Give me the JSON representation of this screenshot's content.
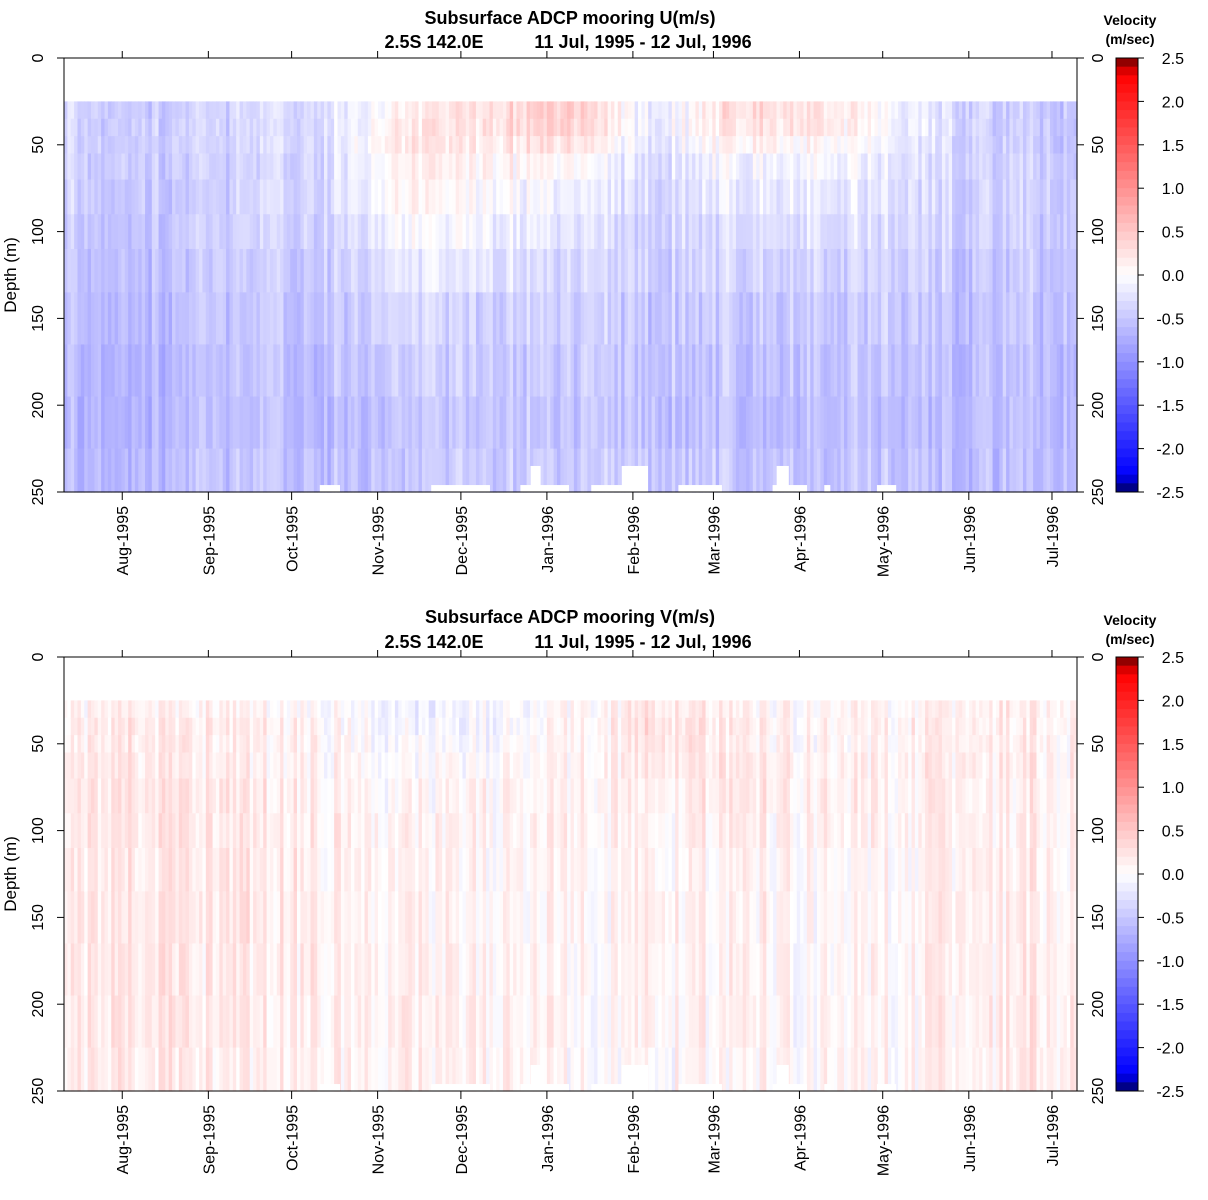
{
  "chart_data": [
    {
      "type": "heatmap",
      "title": "Subsurface ADCP mooring U(m/s)",
      "subtitle_location": "2.5S 142.0E",
      "subtitle_dates": "11 Jul, 1995 - 12 Jul, 1996",
      "ylabel": "Depth (m)",
      "yticks": [
        "0",
        "50",
        "100",
        "150",
        "200",
        "250"
      ],
      "ylim": [
        250,
        0
      ],
      "xticks": [
        "Aug-1995",
        "Sep-1995",
        "Oct-1995",
        "Nov-1995",
        "Dec-1995",
        "Jan-1996",
        "Feb-1996",
        "Mar-1996",
        "Apr-1996",
        "May-1996",
        "Jun-1996",
        "Jul-1996"
      ],
      "xrange": [
        "1995-07-11",
        "1996-07-12"
      ],
      "data_top_depth": 25,
      "colorbar_title": [
        "Velocity",
        "(m/sec)"
      ],
      "colorbar_ticks": [
        "2.5",
        "2.0",
        "1.5",
        "1.0",
        "0.5",
        "0.0",
        "-0.5",
        "-1.0",
        "-1.5",
        "-2.0",
        "-2.5"
      ],
      "clim": [
        -2.5,
        2.5
      ],
      "summary": {
        "depth_levels": [
          30,
          40,
          50,
          60,
          80,
          100,
          120,
          150,
          180,
          210,
          240
        ],
        "months": [
          "Jul-1995",
          "Aug-1995",
          "Sep-1995",
          "Oct-1995",
          "Nov-1995",
          "Dec-1995",
          "Jan-1996",
          "Feb-1996",
          "Mar-1996",
          "Apr-1996",
          "May-1996",
          "Jun-1996",
          "Jul-1996"
        ],
        "values": [
          [
            -0.35,
            -0.45,
            -0.4,
            -0.3,
            0.1,
            0.25,
            0.5,
            -0.2,
            0.35,
            0.3,
            -0.15,
            -0.45,
            -0.5
          ],
          [
            -0.35,
            -0.45,
            -0.4,
            -0.3,
            0.15,
            0.25,
            0.45,
            -0.2,
            0.3,
            0.25,
            -0.15,
            -0.45,
            -0.5
          ],
          [
            -0.35,
            -0.45,
            -0.4,
            -0.3,
            0.2,
            0.2,
            0.3,
            -0.25,
            0.15,
            0.1,
            -0.2,
            -0.45,
            -0.5
          ],
          [
            -0.4,
            -0.45,
            -0.45,
            -0.35,
            0.15,
            0.1,
            0.05,
            -0.3,
            -0.05,
            -0.05,
            -0.25,
            -0.45,
            -0.45
          ],
          [
            -0.4,
            -0.5,
            -0.45,
            -0.35,
            0.05,
            0.0,
            -0.1,
            -0.35,
            -0.15,
            -0.15,
            -0.3,
            -0.45,
            -0.45
          ],
          [
            -0.45,
            -0.5,
            -0.45,
            -0.4,
            -0.05,
            -0.1,
            -0.2,
            -0.4,
            -0.25,
            -0.25,
            -0.35,
            -0.45,
            -0.45
          ],
          [
            -0.5,
            -0.55,
            -0.5,
            -0.45,
            -0.2,
            -0.25,
            -0.3,
            -0.45,
            -0.35,
            -0.35,
            -0.4,
            -0.5,
            -0.5
          ],
          [
            -0.55,
            -0.6,
            -0.55,
            -0.5,
            -0.35,
            -0.4,
            -0.4,
            -0.5,
            -0.45,
            -0.45,
            -0.5,
            -0.55,
            -0.55
          ],
          [
            -0.6,
            -0.65,
            -0.6,
            -0.55,
            -0.45,
            -0.45,
            -0.45,
            -0.55,
            -0.5,
            -0.5,
            -0.55,
            -0.6,
            -0.6
          ],
          [
            -0.65,
            -0.65,
            -0.6,
            -0.6,
            -0.5,
            -0.5,
            -0.5,
            -0.55,
            -0.55,
            -0.55,
            -0.6,
            -0.6,
            -0.6
          ],
          [
            -0.6,
            -0.6,
            -0.55,
            -0.55,
            -0.5,
            -0.45,
            -0.45,
            -0.5,
            -0.5,
            -0.5,
            -0.55,
            -0.6,
            -0.6
          ]
        ]
      }
    },
    {
      "type": "heatmap",
      "title": "Subsurface ADCP mooring V(m/s)",
      "subtitle_location": "2.5S 142.0E",
      "subtitle_dates": "11 Jul, 1995 - 12 Jul, 1996",
      "ylabel": "Depth (m)",
      "yticks": [
        "0",
        "50",
        "100",
        "150",
        "200",
        "250"
      ],
      "ylim": [
        250,
        0
      ],
      "xticks": [
        "Aug-1995",
        "Sep-1995",
        "Oct-1995",
        "Nov-1995",
        "Dec-1995",
        "Jan-1996",
        "Feb-1996",
        "Mar-1996",
        "Apr-1996",
        "May-1996",
        "Jun-1996",
        "Jul-1996"
      ],
      "xrange": [
        "1995-07-11",
        "1996-07-12"
      ],
      "data_top_depth": 25,
      "colorbar_title": [
        "Velocity",
        "(m/sec)"
      ],
      "colorbar_ticks": [
        "2.5",
        "2.0",
        "1.5",
        "1.0",
        "0.5",
        "0.0",
        "-0.5",
        "-1.0",
        "-1.5",
        "-2.0",
        "-2.5"
      ],
      "clim": [
        -2.5,
        2.5
      ],
      "summary": {
        "depth_levels": [
          30,
          40,
          50,
          60,
          80,
          100,
          120,
          150,
          180,
          210,
          240
        ],
        "months": [
          "Jul-1995",
          "Aug-1995",
          "Sep-1995",
          "Oct-1995",
          "Nov-1995",
          "Dec-1995",
          "Jan-1996",
          "Feb-1996",
          "Mar-1996",
          "Apr-1996",
          "May-1996",
          "Jun-1996",
          "Jul-1996"
        ],
        "values": [
          [
            0.1,
            0.15,
            0.1,
            0.05,
            -0.15,
            -0.1,
            0.05,
            0.2,
            0.1,
            0.05,
            0.1,
            0.15,
            0.15
          ],
          [
            0.15,
            0.2,
            0.15,
            0.1,
            -0.1,
            -0.1,
            0.05,
            0.3,
            0.15,
            0.05,
            0.15,
            0.15,
            0.15
          ],
          [
            0.15,
            0.2,
            0.15,
            0.1,
            -0.05,
            -0.05,
            0.05,
            0.25,
            0.15,
            0.05,
            0.15,
            0.15,
            0.15
          ],
          [
            0.2,
            0.2,
            0.15,
            0.1,
            0.0,
            0.0,
            0.1,
            0.2,
            0.2,
            0.1,
            0.15,
            0.15,
            0.15
          ],
          [
            0.2,
            0.25,
            0.2,
            0.15,
            0.05,
            0.05,
            0.1,
            0.15,
            0.2,
            0.1,
            0.15,
            0.15,
            0.15
          ],
          [
            0.2,
            0.25,
            0.2,
            0.15,
            0.1,
            0.05,
            0.1,
            0.1,
            0.15,
            0.1,
            0.15,
            0.15,
            0.15
          ],
          [
            0.2,
            0.2,
            0.2,
            0.15,
            0.1,
            0.05,
            0.1,
            0.1,
            0.1,
            0.05,
            0.1,
            0.15,
            0.15
          ],
          [
            0.2,
            0.2,
            0.2,
            0.15,
            0.1,
            0.05,
            0.05,
            0.1,
            0.1,
            0.05,
            0.1,
            0.15,
            0.15
          ],
          [
            0.2,
            0.2,
            0.2,
            0.15,
            0.1,
            0.1,
            0.05,
            0.1,
            0.1,
            0.05,
            0.1,
            0.15,
            0.2
          ],
          [
            0.2,
            0.2,
            0.2,
            0.15,
            0.15,
            0.1,
            0.05,
            0.1,
            0.1,
            0.05,
            0.1,
            0.15,
            0.2
          ],
          [
            0.2,
            0.2,
            0.15,
            0.15,
            0.1,
            0.1,
            0.05,
            0.05,
            0.05,
            0.05,
            0.1,
            0.15,
            0.2
          ]
        ]
      }
    }
  ]
}
